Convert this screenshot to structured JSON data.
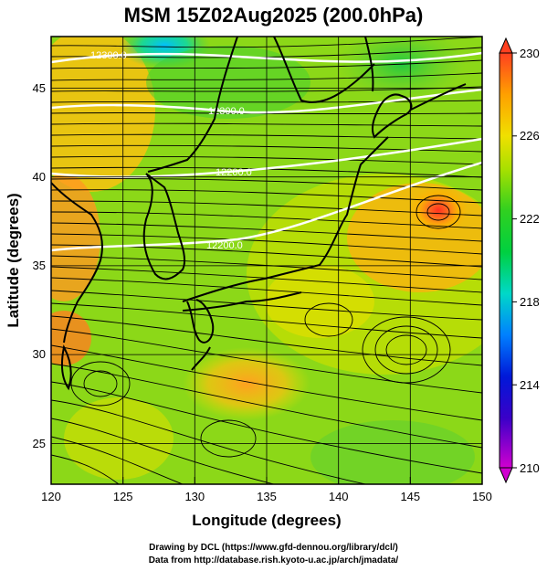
{
  "title": "MSM 15Z02Aug2025 (200.0hPa)",
  "x_axis": {
    "label": "Longitude (degrees)",
    "min": 120,
    "max": 150,
    "ticks": [
      "120",
      "125",
      "130",
      "135",
      "140",
      "145",
      "150"
    ]
  },
  "y_axis": {
    "label": "Latitude  (degrees)",
    "min": 22.4,
    "max": 47.6,
    "ticks": [
      "25",
      "30",
      "35",
      "40",
      "45"
    ]
  },
  "colorbar": {
    "min": 210,
    "max": 230,
    "ticks": [
      "230",
      "226",
      "222",
      "218",
      "214",
      "210"
    ],
    "colors": [
      "#d000d0",
      "#0000c8",
      "#00a0ff",
      "#00d8c0",
      "#00d050",
      "#40d030",
      "#a8e000",
      "#e8e000",
      "#ffa000",
      "#ff4020"
    ]
  },
  "contour_labels": [
    "12300.0",
    "12300.0",
    "12200.0",
    "12200.0"
  ],
  "features": {
    "warm_spot": "High temperature center east of northern Japan",
    "cool_area": "Low temperature area near 47N 127E"
  },
  "credits": {
    "line1": "Drawing by DCL (https://www.gfd-dennou.org/library/dcl/)",
    "line2": "Data from http://database.rish.kyoto-u.ac.jp/arch/jmadata/"
  }
}
